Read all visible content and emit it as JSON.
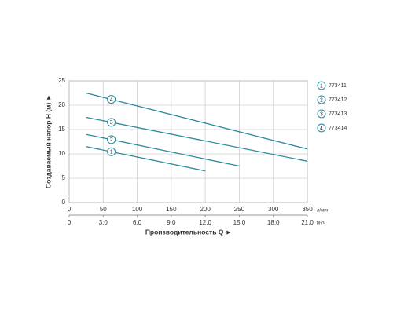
{
  "chart_data": {
    "type": "line",
    "x_label": "Производительность Q ►",
    "y_label": "Создаваемый напор H (м) ►",
    "x_unit": "л/мин",
    "x2_unit": "м³/ч",
    "xlim": [
      0,
      350
    ],
    "xticks": [
      0,
      50,
      100,
      150,
      200,
      250,
      300,
      350
    ],
    "x2lim": [
      0,
      21
    ],
    "x2ticks": [
      0,
      {
        "value": 3,
        "label": "3.0"
      },
      {
        "value": 6,
        "label": "6.0"
      },
      {
        "value": 9,
        "label": "9.0"
      },
      {
        "value": 12,
        "label": "12.0"
      },
      {
        "value": 15,
        "label": "15.0"
      },
      {
        "value": 18,
        "label": "18.0"
      },
      {
        "value": 21,
        "label": "21.0"
      }
    ],
    "ylim": [
      0,
      25
    ],
    "yticks": [
      0,
      5,
      10,
      15,
      20,
      25
    ],
    "grid": true,
    "series": [
      {
        "name": "773411",
        "marker": "1",
        "color": "#2b8a9b",
        "x": [
          25,
          200
        ],
        "values": [
          11.5,
          6.5
        ]
      },
      {
        "name": "773412",
        "marker": "2",
        "color": "#2b8a9b",
        "x": [
          25,
          250
        ],
        "values": [
          14,
          7.5
        ]
      },
      {
        "name": "773413",
        "marker": "3",
        "color": "#2b8a9b",
        "x": [
          25,
          350
        ],
        "values": [
          17.5,
          8.5
        ]
      },
      {
        "name": "773414",
        "marker": "4",
        "color": "#2b8a9b",
        "x": [
          25,
          350
        ],
        "values": [
          22.5,
          11
        ]
      }
    ]
  }
}
